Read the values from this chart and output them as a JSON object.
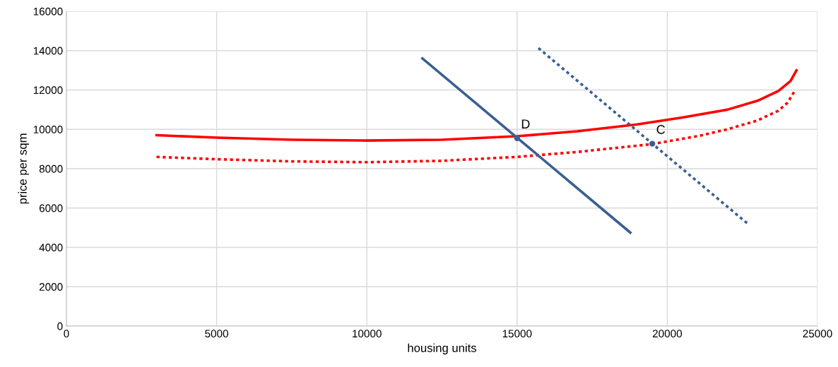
{
  "chart_data": {
    "type": "line",
    "xlabel": "housing units",
    "ylabel": "price per sqm",
    "xlim": [
      0,
      25000
    ],
    "xticks": [
      0,
      5000,
      10000,
      15000,
      20000,
      25000
    ],
    "ylim": [
      0,
      16000
    ],
    "yticks": [
      0,
      2000,
      4000,
      6000,
      8000,
      10000,
      12000,
      14000,
      16000
    ],
    "grid": true,
    "series": [
      {
        "color": "#ff0000",
        "line_style": "solid",
        "x": [
          3000,
          5000,
          7500,
          10000,
          12500,
          15000,
          17000,
          19000,
          20500,
          22000,
          23000,
          23700,
          24100,
          24300
        ],
        "values": [
          9700,
          9580,
          9470,
          9430,
          9470,
          9650,
          9900,
          10250,
          10600,
          11000,
          11450,
          11950,
          12450,
          13000
        ]
      },
      {
        "color": "#ff0000",
        "line_style": "dotted",
        "x": [
          3000,
          5000,
          7500,
          10000,
          12500,
          15000,
          17000,
          19500,
          21000,
          22000,
          23000,
          23700,
          24000,
          24220
        ],
        "values": [
          8600,
          8480,
          8370,
          8330,
          8400,
          8600,
          8850,
          9250,
          9650,
          10000,
          10450,
          10950,
          11350,
          11900
        ]
      },
      {
        "color": "#3a5f94",
        "line_style": "solid",
        "x": [
          11850,
          18770
        ],
        "values": [
          13600,
          4750
        ]
      },
      {
        "color": "#3a5f94",
        "line_style": "dotted",
        "x": [
          15710,
          22670
        ],
        "values": [
          14130,
          5210
        ]
      },
      {
        "type": "scatter",
        "color": "#3a5f94",
        "marker": "circle",
        "x": [
          15000,
          19500
        ],
        "values": [
          9550,
          9270
        ]
      }
    ],
    "annotations": [
      {
        "text": "D",
        "x": 15000,
        "y": 9550
      },
      {
        "text": "C",
        "x": 19500,
        "y": 9270
      }
    ]
  }
}
